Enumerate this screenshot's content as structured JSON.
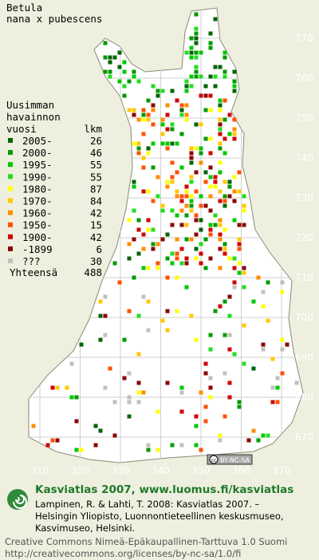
{
  "title": [
    "Betula",
    "nana x pubescens"
  ],
  "legend": {
    "heading": [
      "Uusimman",
      "havainnon"
    ],
    "col_year": "vuosi",
    "col_count": "lkm",
    "rows": [
      {
        "label": "2005-",
        "count": 26,
        "color": "#006400"
      },
      {
        "label": "2000-",
        "count": 46,
        "color": "#009a00"
      },
      {
        "label": "1995-",
        "count": 55,
        "color": "#00c800"
      },
      {
        "label": "1990-",
        "count": 55,
        "color": "#22dd22"
      },
      {
        "label": "1980-",
        "count": 87,
        "color": "#ffff00"
      },
      {
        "label": "1970-",
        "count": 84,
        "color": "#ffc800"
      },
      {
        "label": "1960-",
        "count": 42,
        "color": "#ff8c00"
      },
      {
        "label": "1950-",
        "count": 15,
        "color": "#ff5000"
      },
      {
        "label": "1900-",
        "count": 42,
        "color": "#d20000"
      },
      {
        "label": "-1899",
        "count": 6,
        "color": "#8c0000"
      },
      {
        "label": "???",
        "count": 30,
        "color": "#c0c0c0"
      }
    ],
    "total_label": "Yhteensä",
    "total": 488
  },
  "grid": {
    "northing": [
      770,
      760,
      750,
      740,
      730,
      720,
      710,
      700,
      690,
      680,
      670
    ],
    "easting": [
      310,
      320,
      330,
      340,
      350,
      360,
      370
    ]
  },
  "license_badge": [
    "cc",
    "BY-NC-SA"
  ],
  "footer": {
    "brand": "Kasviatlas 2007, www.luomus.fi/kasviatlas",
    "citation": [
      "Lampinen, R. & Lahti, T. 2008: Kasviatlas 2007. –",
      "Helsingin Yliopisto, Luonnontieteellinen keskusmuseo,",
      "Kasvimuseo, Helsinki."
    ],
    "license": [
      "Creative Commons Nimeä-Epäkaupallinen-Tarttuva 1.0 Suomi",
      "http://creativecommons.org/licenses/by-nc-sa/1.0/fi"
    ]
  }
}
